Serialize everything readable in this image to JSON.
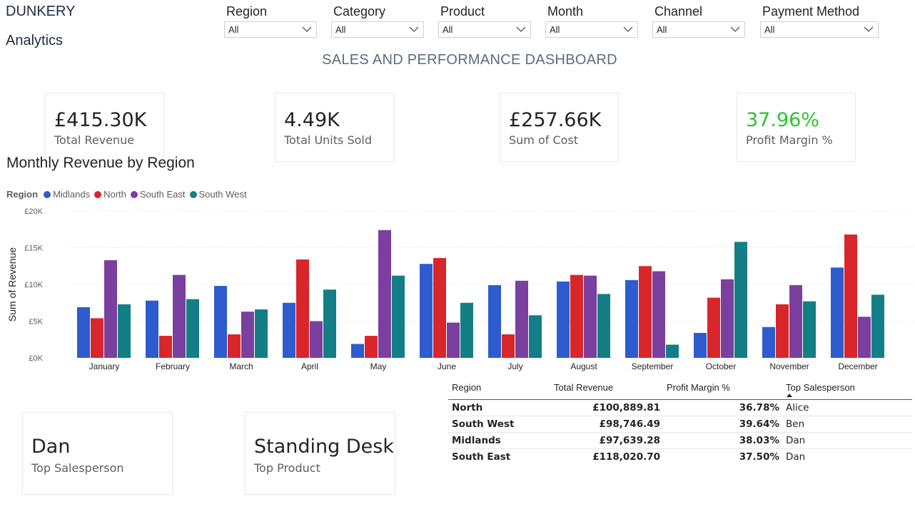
{
  "brand": {
    "line1": "DUNKERY",
    "line2": "Analytics"
  },
  "filters": [
    {
      "label": "Region",
      "value": "All"
    },
    {
      "label": "Category",
      "value": "All"
    },
    {
      "label": "Product",
      "value": "All"
    },
    {
      "label": "Month",
      "value": "All"
    },
    {
      "label": "Channel",
      "value": "All"
    },
    {
      "label": "Payment Method",
      "value": "All"
    }
  ],
  "dashboard_title": "SALES AND PERFORMANCE DASHBOARD",
  "kpis": [
    {
      "value": "£415.30K",
      "caption": "Total Revenue"
    },
    {
      "value": "4.49K",
      "caption": "Total Units Sold"
    },
    {
      "value": "£257.66K",
      "caption": "Sum of Cost"
    },
    {
      "value": "37.96%",
      "caption": "Profit Margin %",
      "color": "#2dc42d"
    }
  ],
  "top_cards": [
    {
      "value": "Dan",
      "caption": "Top Salesperson"
    },
    {
      "value": "Standing Desk",
      "caption": "Top Product"
    }
  ],
  "table": {
    "headers": [
      "Region",
      "Total Revenue",
      "Profit Margin %",
      "Top Salesperson"
    ],
    "rows": [
      [
        "North",
        "£100,889.81",
        "36.78%",
        "Alice"
      ],
      [
        "South West",
        "£98,746.49",
        "39.64%",
        "Ben"
      ],
      [
        "Midlands",
        "£97,639.28",
        "38.03%",
        "Dan"
      ],
      [
        "South East",
        "£118,020.70",
        "37.50%",
        "Dan"
      ]
    ]
  },
  "chart_data": {
    "type": "bar",
    "title": "Monthly Revenue by Region",
    "legend_title": "Region",
    "ylabel": "Sum of Revenue",
    "xlabel": "",
    "ylim": [
      0,
      20000
    ],
    "yticks": [
      "£0K",
      "£5K",
      "£10K",
      "£15K",
      "£20K"
    ],
    "grid": true,
    "legend_position": "top-left",
    "categories": [
      "January",
      "February",
      "March",
      "April",
      "May",
      "June",
      "July",
      "August",
      "September",
      "October",
      "November",
      "December"
    ],
    "series": [
      {
        "name": "Midlands",
        "color": "#2e5bce",
        "values": [
          6900,
          7800,
          9800,
          7500,
          1900,
          12800,
          9900,
          10400,
          10600,
          3400,
          4200,
          12300
        ]
      },
      {
        "name": "North",
        "color": "#d9262a",
        "values": [
          5400,
          3000,
          3200,
          13400,
          3000,
          13600,
          3200,
          11300,
          12500,
          8200,
          7300,
          16800
        ]
      },
      {
        "name": "South East",
        "color": "#7b3fa0",
        "values": [
          13300,
          11300,
          6300,
          5000,
          17400,
          4800,
          10500,
          11200,
          11800,
          10700,
          9900,
          5600
        ]
      },
      {
        "name": "South West",
        "color": "#137e85",
        "values": [
          7300,
          8000,
          6600,
          9300,
          11200,
          7500,
          5800,
          8700,
          1800,
          15800,
          7700,
          8600
        ]
      }
    ]
  }
}
